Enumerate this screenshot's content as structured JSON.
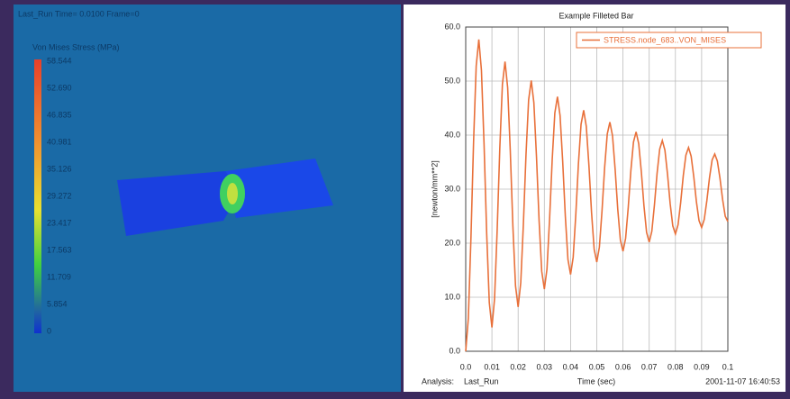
{
  "viewport": {
    "header": "Last_Run   Time= 0.0100  Frame=0",
    "legend": {
      "title": "Von Mises Stress (MPa)",
      "labels": [
        "58.544",
        "52.690",
        "46.835",
        "40.981",
        "35.126",
        "29.272",
        "23.417",
        "17.563",
        "11.709",
        "5.854",
        "0"
      ]
    }
  },
  "chart_data": {
    "type": "line",
    "title": "Example Filleted Bar",
    "x_label": "Time (sec)",
    "y_label": "[newton/mm**2]",
    "analysis_label": "Analysis:",
    "analysis_name": "Last_Run",
    "timestamp": "2001-11-07 16:40:53",
    "grid": true,
    "legend_position": "upper-right",
    "xlim": [
      0,
      0.1
    ],
    "ylim": [
      0,
      60
    ],
    "xticks": [
      {
        "value": 0,
        "label": "0.0"
      },
      0.01,
      0.02,
      0.03,
      0.04,
      0.05,
      0.06,
      0.07,
      0.08,
      0.09,
      0.1
    ],
    "yticks": [
      {
        "value": 0,
        "label": "0.0"
      },
      {
        "value": 10,
        "label": "10.0"
      },
      {
        "value": 20,
        "label": "20.0"
      },
      {
        "value": 30,
        "label": "30.0"
      },
      {
        "value": 40,
        "label": "40.0"
      },
      {
        "value": 50,
        "label": "50.0"
      },
      {
        "value": 60,
        "label": "60.0"
      }
    ],
    "x": [
      0,
      0.001,
      0.002,
      0.003,
      0.004,
      0.005,
      0.006,
      0.007,
      0.008,
      0.009,
      0.01,
      0.011,
      0.012,
      0.013,
      0.014,
      0.015,
      0.016,
      0.017,
      0.018,
      0.019,
      0.02,
      0.021,
      0.022,
      0.023,
      0.024,
      0.025,
      0.026,
      0.027,
      0.028,
      0.029,
      0.03,
      0.031,
      0.032,
      0.033,
      0.034,
      0.035,
      0.036,
      0.037,
      0.038,
      0.039,
      0.04,
      0.041,
      0.042,
      0.043,
      0.044,
      0.045,
      0.046,
      0.047,
      0.048,
      0.049,
      0.05,
      0.051,
      0.052,
      0.053,
      0.054,
      0.055,
      0.056,
      0.057,
      0.058,
      0.059,
      0.06,
      0.061,
      0.062,
      0.063,
      0.064,
      0.065,
      0.066,
      0.067,
      0.068,
      0.069,
      0.07,
      0.071,
      0.072,
      0.073,
      0.074,
      0.075,
      0.076,
      0.077,
      0.078,
      0.079,
      0.08,
      0.081,
      0.082,
      0.083,
      0.084,
      0.085,
      0.086,
      0.087,
      0.088,
      0.089,
      0.09,
      0.091,
      0.092,
      0.093,
      0.094,
      0.095,
      0.096,
      0.097,
      0.098,
      0.099,
      0.1
    ],
    "series": [
      {
        "name": "STRESS.node_683..VON_MISES",
        "color": "#e8703a",
        "values": [
          0.0,
          6.1,
          21.0,
          38.8,
          52.8,
          57.7,
          52.0,
          38.3,
          21.8,
          9.0,
          4.4,
          9.7,
          22.4,
          37.5,
          49.4,
          53.6,
          48.8,
          37.1,
          23.1,
          12.1,
          8.2,
          12.7,
          23.5,
          36.4,
          46.5,
          50.1,
          46.0,
          36.0,
          24.1,
          14.8,
          11.5,
          15.2,
          24.5,
          35.5,
          44.1,
          47.1,
          43.6,
          35.1,
          25.0,
          17.0,
          14.2,
          17.4,
          25.3,
          34.7,
          42.0,
          44.6,
          41.6,
          34.4,
          25.7,
          18.9,
          16.5,
          19.3,
          26.0,
          34.0,
          40.2,
          42.4,
          39.9,
          33.7,
          26.3,
          20.6,
          18.5,
          20.9,
          26.6,
          33.4,
          38.7,
          40.6,
          38.4,
          33.2,
          26.9,
          22.0,
          20.2,
          22.2,
          27.1,
          32.9,
          37.4,
          39.0,
          37.2,
          32.7,
          27.3,
          23.2,
          21.7,
          23.4,
          27.5,
          32.5,
          36.3,
          37.7,
          36.1,
          32.3,
          27.7,
          24.2,
          22.9,
          24.4,
          27.9,
          32.1,
          35.4,
          36.5,
          35.2,
          32.0,
          28.1,
          25.0,
          24.0
        ]
      }
    ]
  }
}
